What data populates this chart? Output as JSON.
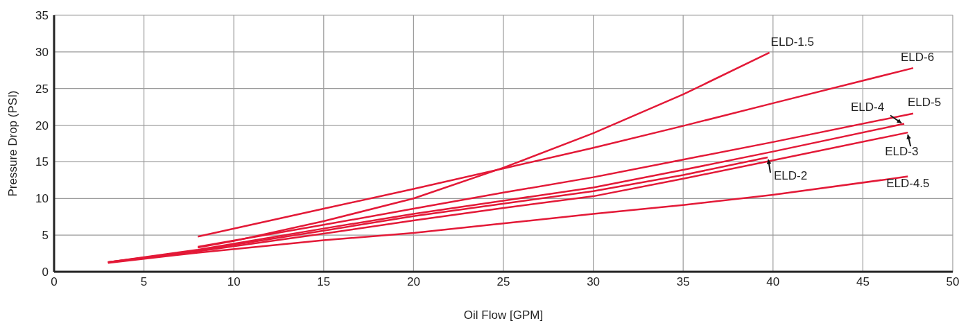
{
  "chart_data": {
    "type": "line",
    "xlabel": "Oil Flow [GPM]",
    "ylabel": "Pressure Drop (PSI)",
    "xlim": [
      0,
      50
    ],
    "xticks": [
      0,
      5,
      10,
      15,
      20,
      25,
      30,
      35,
      40,
      45,
      50
    ],
    "ylim": [
      0,
      35
    ],
    "yticks": [
      0,
      5,
      10,
      15,
      20,
      25,
      30,
      35
    ],
    "grid": true,
    "legend": false,
    "marker": "none",
    "line_style": "solid",
    "series": [
      {
        "name": "ELD-1.5",
        "color": "#e31937",
        "x": [
          8,
          10,
          15,
          20,
          25,
          30,
          35,
          39.8
        ],
        "values": [
          3.3,
          4.2,
          6.9,
          10.0,
          14.2,
          18.9,
          24.2,
          29.9
        ]
      },
      {
        "name": "ELD-6",
        "color": "#e31937",
        "x": [
          8,
          15,
          20,
          25,
          30,
          35,
          40,
          47.8
        ],
        "values": [
          4.8,
          8.6,
          11.3,
          14.1,
          16.9,
          19.9,
          23.0,
          27.8
        ]
      },
      {
        "name": "ELD-5",
        "color": "#e31937",
        "x": [
          8,
          15,
          20,
          25,
          30,
          35,
          40,
          47.8
        ],
        "values": [
          3.4,
          6.4,
          8.6,
          10.8,
          12.9,
          15.3,
          17.7,
          21.6
        ]
      },
      {
        "name": "ELD-4",
        "color": "#e31937",
        "x": [
          3,
          8,
          15,
          20,
          25,
          30,
          35,
          40,
          47.3
        ],
        "values": [
          1.3,
          3.0,
          5.9,
          7.9,
          9.7,
          11.5,
          13.9,
          16.4,
          20.2
        ]
      },
      {
        "name": "ELD-3",
        "color": "#e31937",
        "x": [
          3,
          8,
          15,
          20,
          25,
          30,
          35,
          40,
          47.5
        ],
        "values": [
          1.3,
          2.8,
          5.2,
          7.0,
          8.7,
          10.3,
          12.7,
          15.2,
          19.0
        ]
      },
      {
        "name": "ELD-2",
        "color": "#e31937",
        "x": [
          3,
          8,
          15,
          20,
          25,
          30,
          35,
          39.7
        ],
        "values": [
          1.3,
          2.9,
          5.6,
          7.6,
          9.3,
          11.0,
          13.2,
          15.6
        ]
      },
      {
        "name": "ELD-4.5",
        "color": "#e31937",
        "x": [
          3,
          8,
          15,
          20,
          25,
          30,
          35,
          40,
          47.5
        ],
        "values": [
          1.2,
          2.6,
          4.3,
          5.3,
          6.6,
          7.9,
          9.1,
          10.5,
          13.0
        ]
      }
    ]
  }
}
